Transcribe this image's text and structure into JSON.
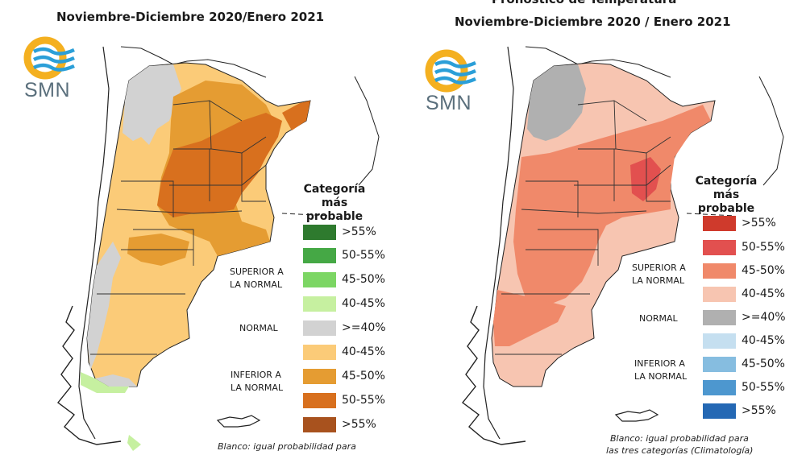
{
  "left": {
    "title": "Noviembre-Diciembre 2020/Enero 2021",
    "logo_text": "SMN",
    "legend_title_line1": "Categoría más",
    "legend_title_line2": "probable",
    "legend": [
      {
        "label": ">55%",
        "color": "#2e7a2e"
      },
      {
        "label": "50-55%",
        "color": "#45a845"
      },
      {
        "label": "45-50%",
        "color": "#7cd664"
      },
      {
        "label": "40-45%",
        "color": "#c6f0a0"
      },
      {
        "label": ">=40%",
        "color": "#d2d2d2"
      },
      {
        "label": "40-45%",
        "color": "#fbcb78"
      },
      {
        "label": "45-50%",
        "color": "#e59c32"
      },
      {
        "label": "50-55%",
        "color": "#d8701e"
      },
      {
        "label": ">55%",
        "color": "#a8521e"
      }
    ],
    "group_superior_1": "SUPERIOR A",
    "group_superior_2": "LA NORMAL",
    "group_normal": "NORMAL",
    "group_inferior_1": "INFERIOR A",
    "group_inferior_2": "LA NORMAL",
    "note": "Blanco: igual probabilidad para"
  },
  "right": {
    "title_cut": "Pronóstico de Temperatura",
    "title": "Noviembre-Diciembre 2020 / Enero 2021",
    "logo_text": "SMN",
    "legend_title_line1": "Categoría más",
    "legend_title_line2": "probable",
    "legend": [
      {
        "label": ">55%",
        "color": "#cf3a2c"
      },
      {
        "label": "50-55%",
        "color": "#e2504f"
      },
      {
        "label": "45-50%",
        "color": "#f0896a"
      },
      {
        "label": "40-45%",
        "color": "#f7c5b1"
      },
      {
        "label": ">=40%",
        "color": "#b0b0b0"
      },
      {
        "label": "40-45%",
        "color": "#c5dff0"
      },
      {
        "label": "45-50%",
        "color": "#86bde0"
      },
      {
        "label": "50-55%",
        "color": "#4d97cf"
      },
      {
        "label": ">55%",
        "color": "#2468b4"
      }
    ],
    "group_superior_1": "SUPERIOR A",
    "group_superior_2": "LA NORMAL",
    "group_normal": "NORMAL",
    "group_inferior_1": "INFERIOR A",
    "group_inferior_2": "LA NORMAL",
    "note": "Blanco: igual probabilidad para",
    "note2": "las tres categorías (Climatología)"
  }
}
